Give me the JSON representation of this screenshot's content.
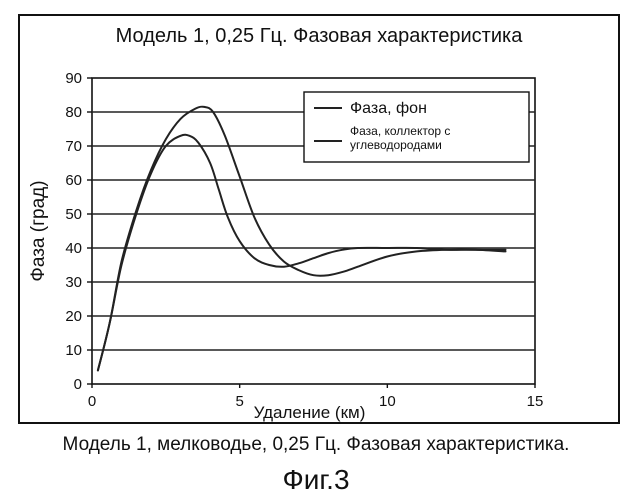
{
  "chart_data": {
    "type": "line",
    "title": "Модель 1, 0,25 Гц. Фазовая характеристика",
    "xlabel": "Удаление (км)",
    "ylabel": "Фаза (град)",
    "xlim": [
      0,
      15
    ],
    "ylim": [
      0,
      90
    ],
    "x_ticks": [
      0,
      5,
      10,
      15
    ],
    "y_ticks": [
      0,
      10,
      20,
      30,
      40,
      50,
      60,
      70,
      80,
      90
    ],
    "grid": "horizontal",
    "legend_position": "top-right",
    "series": [
      {
        "name": "Фаза, фон",
        "color": "#222222",
        "x": [
          0.2,
          0.6,
          1.0,
          1.5,
          2.0,
          2.5,
          3.0,
          3.3,
          3.6,
          4.0,
          4.3,
          4.6,
          5.0,
          5.5,
          6.0,
          6.5,
          7.0,
          7.5,
          8.0,
          8.5,
          9.0,
          10.0,
          11.0,
          12.0,
          13.0,
          14.0
        ],
        "y": [
          4,
          18,
          35,
          50,
          62,
          70,
          73,
          73,
          71,
          65,
          57,
          49,
          42,
          37,
          35,
          34.5,
          35.5,
          37,
          38.5,
          39.5,
          40,
          40,
          40,
          39.5,
          39.5,
          39.5
        ]
      },
      {
        "name": "Фаза, коллектор с углеводородами",
        "color": "#222222",
        "x": [
          0.2,
          0.6,
          1.0,
          1.5,
          2.0,
          2.5,
          3.0,
          3.5,
          3.8,
          4.1,
          4.5,
          5.0,
          5.5,
          6.0,
          6.5,
          7.0,
          7.5,
          8.0,
          8.5,
          9.0,
          10.0,
          11.0,
          12.0,
          13.0,
          14.0
        ],
        "y": [
          4,
          18,
          36,
          51,
          63,
          72,
          78,
          81,
          81.5,
          80,
          73,
          61,
          49,
          41,
          36,
          33.5,
          32,
          32,
          33,
          34.5,
          37.5,
          39,
          39.5,
          39.5,
          39
        ]
      }
    ],
    "caption": "Модель 1, мелководье, 0,25 Гц. Фазовая характеристика.",
    "figure_label": "Фиг.3"
  }
}
